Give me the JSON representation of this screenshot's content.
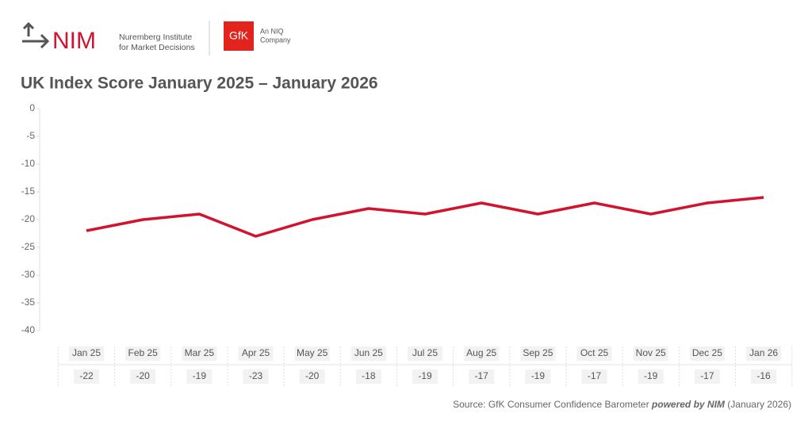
{
  "logos": {
    "nim": "NIM",
    "nim_line1": "Nuremberg Institute",
    "nim_line2": "for Market Decisions",
    "gfk": "GfK",
    "niq_line1": "An NIQ",
    "niq_line2": "Company"
  },
  "chart_data": {
    "type": "line",
    "title": "UK Index Score January 2025 – January 2026",
    "categories": [
      "Jan 25",
      "Feb 25",
      "Mar 25",
      "Apr 25",
      "May 25",
      "Jun 25",
      "Jul 25",
      "Aug 25",
      "Sep 25",
      "Oct 25",
      "Nov 25",
      "Dec 25",
      "Jan 26"
    ],
    "values": [
      -22,
      -20,
      -19,
      -23,
      -20,
      -18,
      -19,
      -17,
      -19,
      -17,
      -19,
      -17,
      -16
    ],
    "color": "#d2122e",
    "ylim": [
      -40,
      0
    ],
    "yticks": [
      0,
      -5,
      -10,
      -15,
      -20,
      -25,
      -30,
      -35,
      -40
    ],
    "grid": false
  },
  "source": {
    "prefix": "Source: GfK Consumer Confidence Barometer",
    "powered": "powered by NIM",
    "suffix": "(January 2026)"
  }
}
